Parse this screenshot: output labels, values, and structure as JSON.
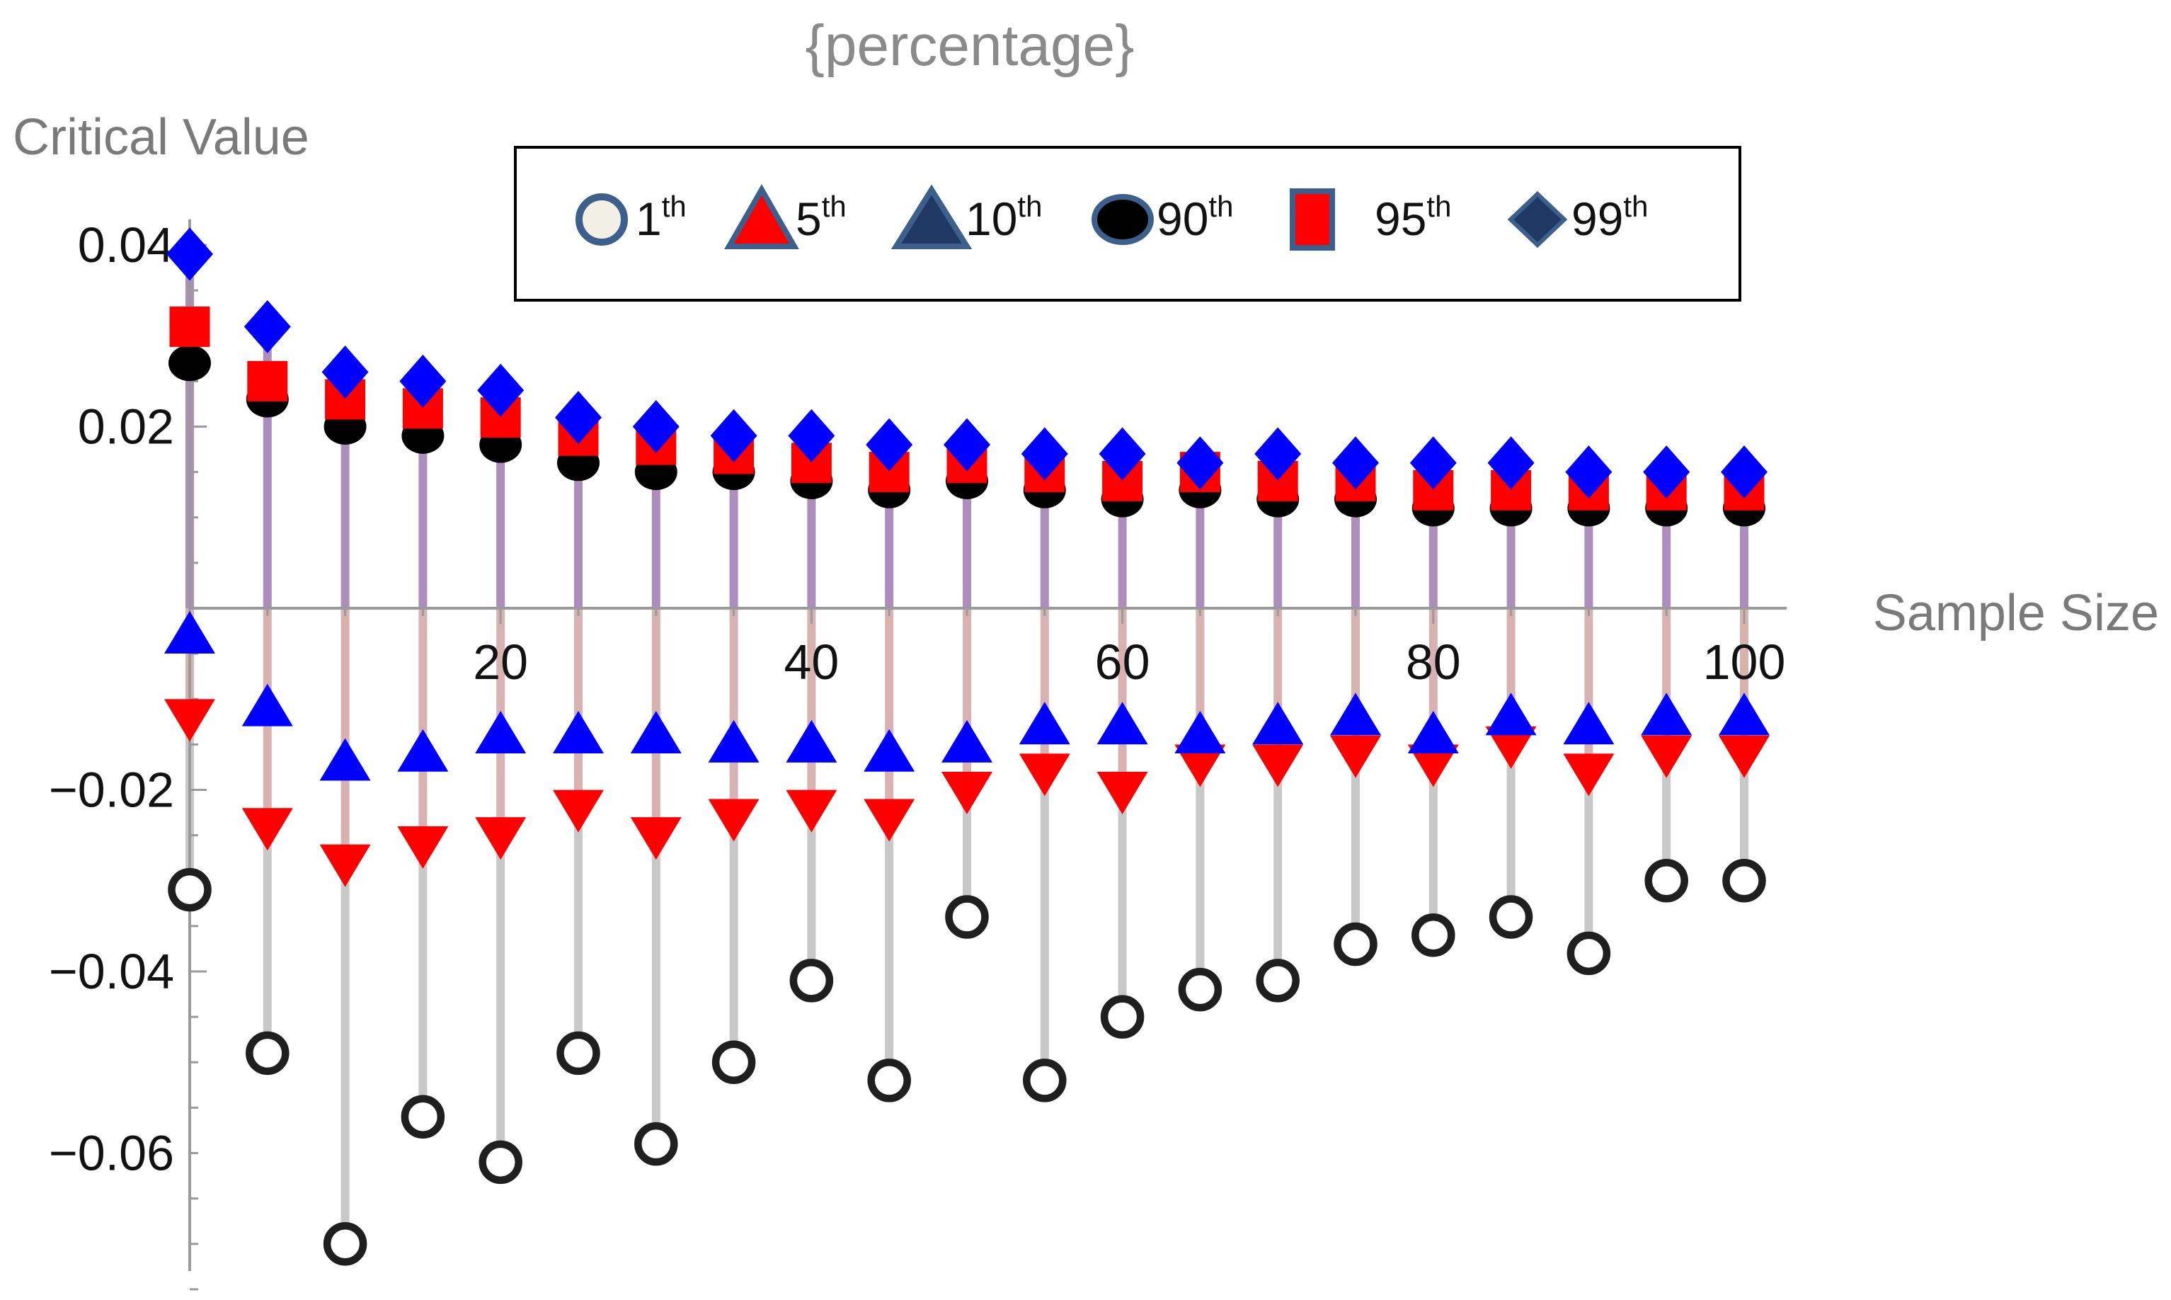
{
  "colors": {
    "first": "#1f1f1f",
    "fifth": "#ff0000",
    "tenth": "#0000ff",
    "ninetieth": "#000000",
    "ninetyfifth": "#ff0000",
    "ninetyninth": "#0000ff",
    "stem_upper": "#8a5ca0",
    "stem_lower": "#c8c8c8",
    "stem_mid": "#c89090",
    "axis": "#9a9a9a"
  },
  "chart_data": {
    "type": "scatter",
    "title": "{percentage}",
    "xlabel": "Sample Size",
    "ylabel": "Critical Value",
    "xlim": [
      0,
      100
    ],
    "ylim": [
      -0.076,
      0.044
    ],
    "x_ticks": [
      20,
      40,
      60,
      80,
      100
    ],
    "x_tick_labels": [
      "20",
      "40",
      "60",
      "80",
      "100"
    ],
    "y_ticks": [
      0.04,
      0.02,
      -0.02,
      -0.04,
      -0.06
    ],
    "y_tick_labels": [
      "0.04",
      "0.02",
      "−0.02",
      "−0.04",
      "−0.06"
    ],
    "x": [
      0,
      5,
      10,
      15,
      20,
      25,
      30,
      35,
      40,
      45,
      50,
      55,
      60,
      65,
      70,
      75,
      80,
      85,
      90,
      95,
      100
    ],
    "series": [
      {
        "name": "1th",
        "sup": "th",
        "label": "1",
        "marker": "circle-open",
        "values": [
          -0.031,
          -0.049,
          -0.07,
          -0.056,
          -0.061,
          -0.049,
          -0.059,
          -0.05,
          -0.041,
          -0.052,
          -0.034,
          -0.052,
          -0.045,
          -0.042,
          -0.041,
          -0.037,
          -0.036,
          -0.034,
          -0.038,
          -0.03,
          -0.03
        ]
      },
      {
        "name": "5th",
        "sup": "th",
        "label": "5",
        "marker": "triangle-down",
        "values": [
          -0.012,
          -0.024,
          -0.028,
          -0.026,
          -0.025,
          -0.022,
          -0.025,
          -0.023,
          -0.022,
          -0.023,
          -0.02,
          -0.018,
          -0.02,
          -0.017,
          -0.017,
          -0.016,
          -0.017,
          -0.015,
          -0.018,
          -0.016,
          -0.016
        ]
      },
      {
        "name": "10th",
        "sup": "th",
        "label": "10",
        "marker": "triangle-up",
        "values": [
          -0.003,
          -0.011,
          -0.017,
          -0.016,
          -0.014,
          -0.014,
          -0.014,
          -0.015,
          -0.015,
          -0.016,
          -0.015,
          -0.013,
          -0.013,
          -0.014,
          -0.013,
          -0.012,
          -0.014,
          -0.012,
          -0.013,
          -0.012,
          -0.012
        ]
      },
      {
        "name": "90th",
        "sup": "th",
        "label": "90",
        "marker": "disk",
        "values": [
          0.027,
          0.023,
          0.02,
          0.019,
          0.018,
          0.016,
          0.015,
          0.015,
          0.014,
          0.013,
          0.014,
          0.013,
          0.012,
          0.013,
          0.012,
          0.012,
          0.011,
          0.011,
          0.011,
          0.011,
          0.011
        ]
      },
      {
        "name": "95th",
        "sup": "th",
        "label": "95",
        "marker": "square",
        "values": [
          0.031,
          0.025,
          0.023,
          0.022,
          0.021,
          0.019,
          0.018,
          0.017,
          0.016,
          0.015,
          0.016,
          0.015,
          0.014,
          0.015,
          0.014,
          0.014,
          0.013,
          0.013,
          0.013,
          0.013,
          0.013
        ]
      },
      {
        "name": "99th",
        "sup": "th",
        "label": "99",
        "marker": "diamond",
        "values": [
          0.039,
          0.031,
          0.026,
          0.025,
          0.024,
          0.021,
          0.02,
          0.019,
          0.019,
          0.018,
          0.018,
          0.017,
          0.017,
          0.016,
          0.017,
          0.016,
          0.016,
          0.016,
          0.015,
          0.015,
          0.015
        ]
      }
    ]
  }
}
